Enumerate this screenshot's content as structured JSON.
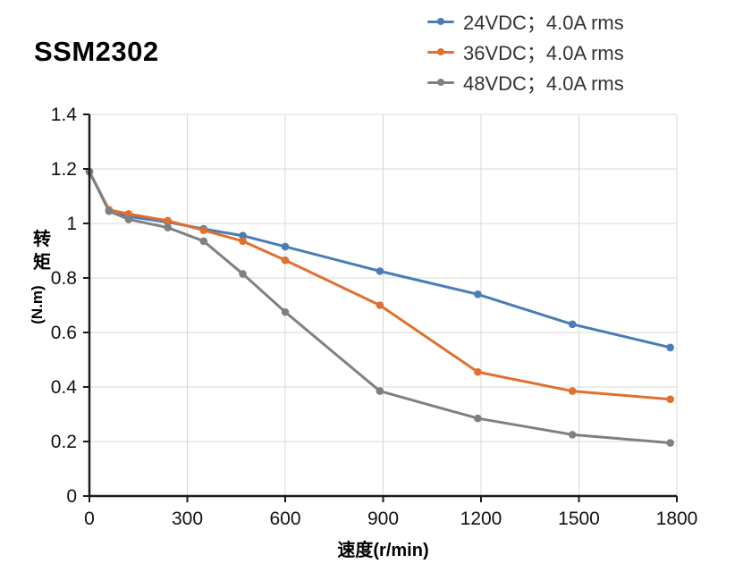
{
  "page": {
    "title": "SSM2302"
  },
  "legend": [
    {
      "label": "24VDC；4.0A rms",
      "color": "#4a7cb5",
      "series": "24vdc"
    },
    {
      "label": "36VDC；4.0A rms",
      "color": "#e0702f",
      "series": "36vdc"
    },
    {
      "label": "48VDC；4.0A rms",
      "color": "#808080",
      "series": "48vdc"
    }
  ],
  "chart_data": {
    "type": "line",
    "title": "SSM2302",
    "xlabel": "速度(r/min)",
    "ylabel": "转矩(N.m)",
    "ylabel_cn": "转矩",
    "ylabel_unit": "(N.m)",
    "xlim": [
      0,
      1800
    ],
    "ylim": [
      0,
      1.4
    ],
    "xticks": [
      0,
      300,
      600,
      900,
      1200,
      1500,
      1800
    ],
    "yticks": [
      0,
      0.2,
      0.4,
      0.6,
      0.8,
      1,
      1.2,
      1.4
    ],
    "grid": true,
    "legend_position": "top-right",
    "x": [
      0,
      60,
      120,
      240,
      350,
      470,
      600,
      890,
      1190,
      1480,
      1780
    ],
    "series": [
      {
        "id": "24vdc",
        "name": "24VDC；4.0A rms",
        "color": "#4a7cb5",
        "values": [
          1.19,
          1.05,
          1.025,
          1.005,
          0.98,
          0.955,
          0.915,
          0.825,
          0.74,
          0.63,
          0.545
        ]
      },
      {
        "id": "36vdc",
        "name": "36VDC；4.0A rms",
        "color": "#e0702f",
        "values": [
          1.19,
          1.05,
          1.035,
          1.01,
          0.975,
          0.935,
          0.865,
          0.7,
          0.455,
          0.385,
          0.355
        ]
      },
      {
        "id": "48vdc",
        "name": "48VDC；4.0A rms",
        "color": "#808080",
        "values": [
          1.19,
          1.045,
          1.015,
          0.985,
          0.935,
          0.815,
          0.675,
          0.385,
          0.285,
          0.225,
          0.195
        ]
      }
    ]
  }
}
